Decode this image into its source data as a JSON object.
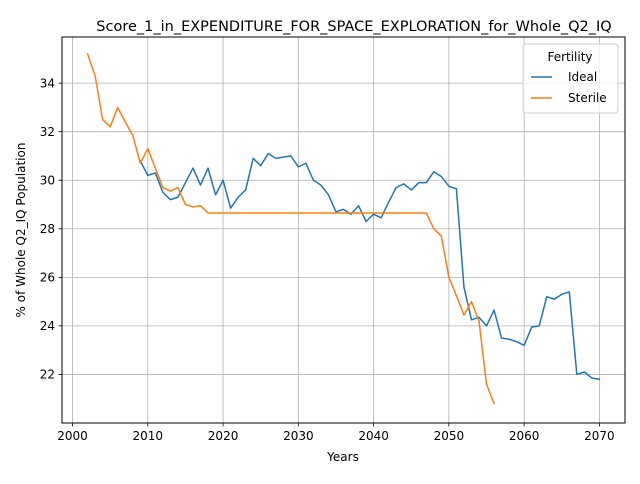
{
  "chart_data": {
    "type": "line",
    "title": "Score_1_in_EXPENDITURE_FOR_SPACE_EXPLORATION_for_Whole_Q2_IQ",
    "xlabel": "Years",
    "ylabel": "% of Whole Q2_IQ Population",
    "xlim": [
      1998.6,
      2073.4
    ],
    "ylim": [
      20.0,
      35.9
    ],
    "xticks": [
      2000,
      2010,
      2020,
      2030,
      2040,
      2050,
      2060,
      2070
    ],
    "yticks": [
      22,
      24,
      26,
      28,
      30,
      32,
      34
    ],
    "grid": true,
    "legend": {
      "title": "Fertility",
      "placement": "top-right"
    },
    "series": [
      {
        "name": "Ideal",
        "color": "#1f77b4",
        "x": [
          2009,
          2010,
          2011,
          2012,
          2013,
          2014,
          2015,
          2016,
          2017,
          2018,
          2019,
          2020,
          2021,
          2022,
          2023,
          2024,
          2025,
          2026,
          2027,
          2028,
          2029,
          2030,
          2031,
          2032,
          2033,
          2034,
          2035,
          2036,
          2037,
          2038,
          2039,
          2040,
          2041,
          2042,
          2043,
          2044,
          2045,
          2046,
          2047,
          2048,
          2049,
          2050,
          2051,
          2052,
          2053,
          2054,
          2055,
          2056,
          2057,
          2058,
          2059,
          2060,
          2061,
          2062,
          2063,
          2064,
          2065,
          2066,
          2067,
          2068,
          2069,
          2070
        ],
        "values": [
          30.8,
          30.2,
          30.3,
          29.5,
          29.2,
          29.3,
          29.9,
          30.5,
          29.8,
          30.5,
          29.4,
          30.0,
          28.85,
          29.3,
          29.6,
          30.9,
          30.6,
          31.1,
          30.9,
          30.95,
          31.0,
          30.55,
          30.7,
          30.0,
          29.8,
          29.4,
          28.7,
          28.8,
          28.6,
          28.95,
          28.3,
          28.6,
          28.45,
          29.1,
          29.7,
          29.85,
          29.6,
          29.9,
          29.9,
          30.35,
          30.15,
          29.75,
          29.65,
          25.6,
          24.25,
          24.35,
          24.0,
          24.65,
          23.5,
          23.45,
          23.35,
          23.2,
          23.95,
          24.0,
          25.2,
          25.1,
          25.3,
          25.4,
          22.0,
          22.1,
          21.85,
          21.8
        ]
      },
      {
        "name": "Sterile",
        "color": "#ff7f0e",
        "x": [
          2002,
          2003,
          2004,
          2005,
          2006,
          2007,
          2008,
          2009,
          2010,
          2011,
          2012,
          2013,
          2014,
          2015,
          2016,
          2017,
          2018,
          2019,
          2020,
          2021,
          2022,
          2023,
          2024,
          2025,
          2026,
          2027,
          2028,
          2029,
          2030,
          2031,
          2032,
          2033,
          2034,
          2035,
          2036,
          2037,
          2038,
          2039,
          2040,
          2041,
          2042,
          2043,
          2044,
          2045,
          2046,
          2047,
          2048,
          2049,
          2050,
          2051,
          2052,
          2053,
          2054,
          2055,
          2056
        ],
        "values": [
          35.2,
          34.3,
          32.5,
          32.2,
          33.0,
          32.4,
          31.85,
          30.7,
          31.3,
          30.5,
          29.7,
          29.55,
          29.7,
          29.0,
          28.9,
          28.95,
          28.65,
          28.65,
          28.65,
          28.65,
          28.65,
          28.65,
          28.65,
          28.65,
          28.65,
          28.65,
          28.65,
          28.65,
          28.65,
          28.65,
          28.65,
          28.65,
          28.65,
          28.65,
          28.65,
          28.65,
          28.65,
          28.65,
          28.65,
          28.65,
          28.65,
          28.65,
          28.65,
          28.65,
          28.65,
          28.65,
          28.0,
          27.7,
          26.0,
          25.25,
          24.45,
          25.0,
          24.2,
          21.6,
          20.8
        ]
      }
    ]
  }
}
